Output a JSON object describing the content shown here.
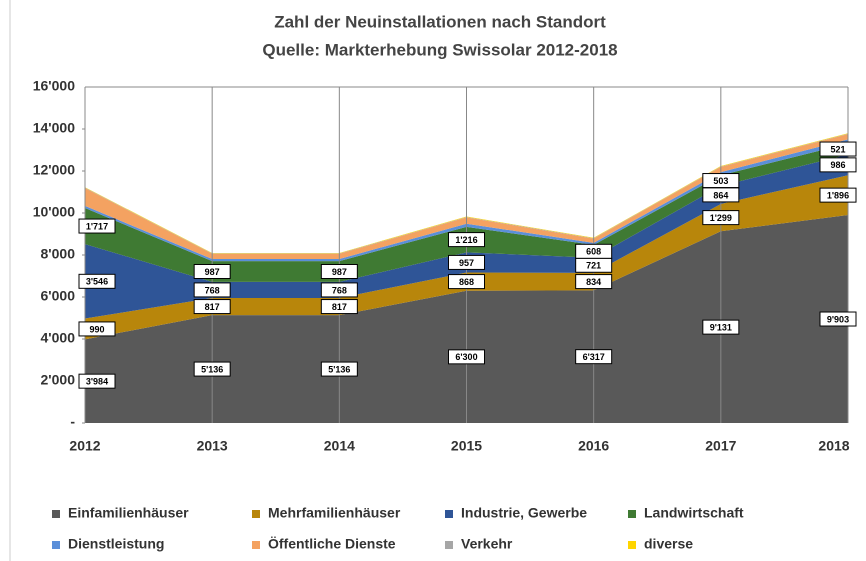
{
  "chart_data": {
    "type": "stacked-area",
    "title": "Zahl der Neuinstallationen nach Standort",
    "subtitle": "Quelle: Markterhebung Swissolar 2012-2018",
    "categories": [
      "2012",
      "2013",
      "2014",
      "2015",
      "2016",
      "2017",
      "2018"
    ],
    "ylim": [
      0,
      16000
    ],
    "yticks": [
      {
        "value": 0,
        "label": "-"
      },
      {
        "value": 2000,
        "label": "2'000"
      },
      {
        "value": 4000,
        "label": "4'000"
      },
      {
        "value": 6000,
        "label": "6'000"
      },
      {
        "value": 8000,
        "label": "8'000"
      },
      {
        "value": 10000,
        "label": "10'000"
      },
      {
        "value": 12000,
        "label": "12'000"
      },
      {
        "value": 14000,
        "label": "14'000"
      },
      {
        "value": 16000,
        "label": "16'000"
      }
    ],
    "grid": true,
    "legend": "bottom",
    "series": [
      {
        "name": "Einfamilienhäuser",
        "color": "#595959",
        "values": [
          3984,
          5136,
          5136,
          6300,
          6317,
          9131,
          9903
        ],
        "value_labels": [
          "3'984",
          "5'136",
          "5'136",
          "6'300",
          "6'317",
          "9'131",
          "9'903"
        ]
      },
      {
        "name": "Mehrfamilienhäuser",
        "color": "#b8860b",
        "values": [
          990,
          817,
          817,
          868,
          834,
          1299,
          1896
        ],
        "value_labels": [
          "990",
          "817",
          "817",
          "868",
          "834",
          "1'299",
          "1'896"
        ]
      },
      {
        "name": "Industrie, Gewerbe",
        "color": "#2f5597",
        "values": [
          3546,
          768,
          768,
          957,
          721,
          864,
          986
        ],
        "value_labels": [
          "3'546",
          "768",
          "768",
          "957",
          "721",
          "864",
          "986"
        ]
      },
      {
        "name": "Landwirtschaft",
        "color": "#3f7a33",
        "values": [
          1717,
          987,
          987,
          1216,
          608,
          503,
          521
        ],
        "value_labels": [
          "1'717",
          "987",
          "987",
          "1'216",
          "608",
          "503",
          "521"
        ]
      },
      {
        "name": "Dienstleistung",
        "color": "#5b8fd9",
        "values": [
          100,
          100,
          100,
          150,
          100,
          150,
          200
        ]
      },
      {
        "name": "Öffentliche Dienste",
        "color": "#f4a261",
        "values": [
          850,
          250,
          250,
          300,
          200,
          250,
          250
        ]
      },
      {
        "name": "Verkehr",
        "color": "#a6a6a6",
        "values": [
          20,
          20,
          20,
          20,
          20,
          20,
          20
        ]
      },
      {
        "name": "diverse",
        "color": "#ffd500",
        "values": [
          20,
          20,
          20,
          20,
          20,
          20,
          20
        ]
      }
    ]
  }
}
